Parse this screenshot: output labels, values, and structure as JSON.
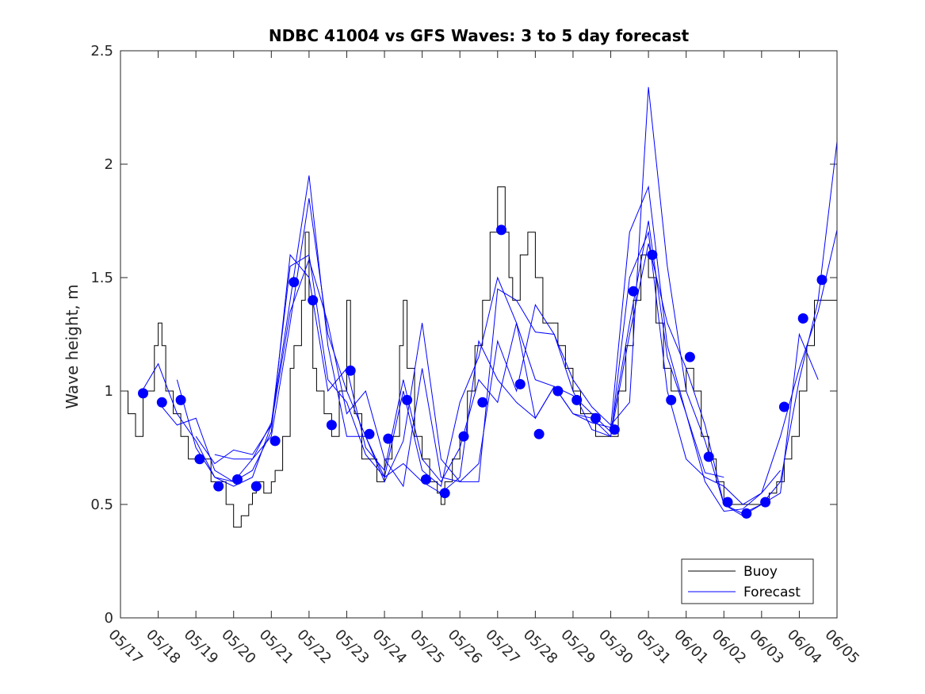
{
  "chart_data": {
    "type": "line",
    "title": "NDBC 41004 vs GFS Waves: 3 to 5 day forecast",
    "xlabel": "",
    "ylabel": "Wave height, m",
    "xlim": [
      "05/17",
      "06/05"
    ],
    "ylim": [
      0,
      2.5
    ],
    "x_ticks": [
      "05/17",
      "05/18",
      "05/19",
      "05/20",
      "05/21",
      "05/22",
      "05/23",
      "05/24",
      "05/25",
      "05/26",
      "05/27",
      "05/28",
      "05/29",
      "05/30",
      "05/31",
      "06/01",
      "06/02",
      "06/03",
      "06/04",
      "06/05"
    ],
    "y_ticks": [
      "0",
      "0.5",
      "1",
      "1.5",
      "2",
      "2.5"
    ],
    "grid": false,
    "legend_position": "bottom-right",
    "colors": {
      "buoy": "#000000",
      "forecast": "#0000ff",
      "axis": "#262626"
    },
    "legend": [
      "Buoy",
      "Forecast"
    ],
    "series": [
      {
        "name": "Buoy",
        "kind": "line",
        "x_day": [
          0,
          0.1,
          0.2,
          0.3,
          0.4,
          0.6,
          0.8,
          0.9,
          1.0,
          1.1,
          1.2,
          1.4,
          1.6,
          1.8,
          2.0,
          2.2,
          2.4,
          2.6,
          2.8,
          2.9,
          3.0,
          3.2,
          3.4,
          3.5,
          3.6,
          3.8,
          4.0,
          4.1,
          4.3,
          4.5,
          4.6,
          4.7,
          4.8,
          4.9,
          5.0,
          5.1,
          5.2,
          5.4,
          5.6,
          5.8,
          6.0,
          6.1,
          6.2,
          6.4,
          6.6,
          6.8,
          7.0,
          7.2,
          7.4,
          7.5,
          7.6,
          7.8,
          8.0,
          8.2,
          8.4,
          8.5,
          8.6,
          8.8,
          9.0,
          9.2,
          9.4,
          9.6,
          9.8,
          10.0,
          10.1,
          10.2,
          10.3,
          10.4,
          10.6,
          10.8,
          11.0,
          11.2,
          11.4,
          11.6,
          11.8,
          12.0,
          12.2,
          12.4,
          12.6,
          12.8,
          13.0,
          13.2,
          13.4,
          13.6,
          13.8,
          14.0,
          14.2,
          14.4,
          14.6,
          14.8,
          15.0,
          15.2,
          15.4,
          15.6,
          15.8,
          16.0,
          16.2,
          16.4,
          16.6,
          16.8,
          17.0,
          17.2,
          17.4,
          17.6,
          17.8,
          18.0,
          18.2,
          18.4,
          18.6,
          18.8,
          19.0
        ],
        "values": [
          1.0,
          1.0,
          0.9,
          0.9,
          0.8,
          1.0,
          1.0,
          1.2,
          1.3,
          1.2,
          1.0,
          0.9,
          0.8,
          0.7,
          0.7,
          0.7,
          0.6,
          0.6,
          0.5,
          0.5,
          0.4,
          0.45,
          0.5,
          0.55,
          0.6,
          0.55,
          0.6,
          0.65,
          0.8,
          1.1,
          1.2,
          1.2,
          1.4,
          1.7,
          1.4,
          1.1,
          1.0,
          0.9,
          0.8,
          1.0,
          1.4,
          1.1,
          0.9,
          0.7,
          0.7,
          0.6,
          0.7,
          0.8,
          1.2,
          1.4,
          1.1,
          0.8,
          0.7,
          0.6,
          0.55,
          0.5,
          0.6,
          0.7,
          0.8,
          1.0,
          1.2,
          1.4,
          1.7,
          1.9,
          1.9,
          1.7,
          1.5,
          1.4,
          1.6,
          1.7,
          1.5,
          1.3,
          1.3,
          1.2,
          1.1,
          1.0,
          0.9,
          0.9,
          0.8,
          0.8,
          0.8,
          1.0,
          1.2,
          1.4,
          1.6,
          1.5,
          1.3,
          1.1,
          1.0,
          1.0,
          1.1,
          1.0,
          0.8,
          0.7,
          0.6,
          0.5,
          0.5,
          0.5,
          0.5,
          0.5,
          0.5,
          0.55,
          0.6,
          0.7,
          0.8,
          1.0,
          1.2,
          1.4,
          1.4,
          1.4,
          1.4
        ]
      },
      {
        "name": "Forecast",
        "kind": "markers",
        "x_day": [
          0.6,
          1.1,
          1.6,
          2.1,
          2.6,
          3.1,
          3.6,
          4.1,
          4.6,
          5.1,
          5.6,
          6.1,
          6.6,
          7.1,
          7.6,
          8.1,
          8.6,
          9.1,
          9.6,
          10.1,
          10.6,
          11.1,
          11.6,
          12.1,
          12.6,
          13.1,
          13.6,
          14.1,
          14.6,
          15.1,
          15.6,
          16.1,
          16.6,
          17.1,
          17.6,
          18.1,
          18.6
        ],
        "values": [
          0.99,
          0.95,
          0.96,
          0.7,
          0.58,
          0.61,
          0.58,
          0.78,
          1.48,
          1.4,
          0.85,
          1.09,
          0.81,
          0.79,
          0.96,
          0.61,
          0.55,
          0.8,
          0.95,
          1.71,
          1.03,
          0.81,
          1.0,
          0.96,
          0.88,
          0.83,
          1.44,
          1.6,
          0.96,
          1.15,
          0.71,
          0.51,
          0.46,
          0.51,
          0.93,
          1.32,
          1.49
        ]
      },
      {
        "name": "",
        "kind": "line",
        "x_day": [
          0.5,
          1.0,
          1.5,
          2.0,
          2.5,
          3.0,
          3.5,
          4.0,
          4.5,
          5.0,
          5.5,
          6.0,
          6.5,
          7.0,
          7.5,
          8.0,
          8.5,
          9.0,
          9.5,
          10.0,
          10.5,
          11.0,
          11.5,
          12.0,
          12.5,
          13.0,
          13.5,
          14.0,
          14.5,
          15.0,
          15.5,
          16.0,
          16.5,
          17.0,
          17.5,
          18.0,
          18.5,
          19.0
        ],
        "values": [
          0.98,
          1.12,
          0.9,
          0.78,
          0.62,
          0.58,
          0.62,
          0.85,
          1.55,
          1.6,
          1.05,
          0.95,
          0.72,
          0.62,
          1.0,
          0.65,
          0.58,
          0.95,
          1.15,
          1.5,
          1.3,
          1.05,
          1.02,
          0.9,
          0.86,
          0.84,
          1.7,
          1.9,
          1.2,
          0.9,
          0.6,
          0.47,
          0.48,
          0.55,
          0.8,
          1.1,
          1.35,
          1.71
        ]
      },
      {
        "name": "",
        "kind": "line",
        "x_day": [
          1.0,
          1.5,
          2.0,
          2.5,
          3.0,
          3.5,
          4.0,
          4.5,
          5.0,
          5.5,
          6.0,
          6.5,
          7.0,
          7.5,
          8.0,
          8.5,
          9.0,
          9.5,
          10.0,
          10.5,
          11.0,
          11.5,
          12.0,
          12.5,
          13.0,
          13.5,
          14.0,
          14.5,
          15.0,
          15.5,
          16.0,
          16.5,
          17.0,
          17.5,
          18.0,
          18.5,
          19.0
        ],
        "values": [
          0.95,
          0.85,
          0.88,
          0.65,
          0.6,
          0.7,
          0.8,
          1.3,
          1.85,
          1.25,
          1.0,
          0.8,
          0.6,
          0.78,
          1.3,
          0.7,
          0.6,
          0.68,
          1.22,
          1.0,
          1.38,
          1.25,
          1.05,
          0.93,
          0.85,
          0.95,
          2.34,
          1.55,
          1.0,
          0.78,
          0.5,
          0.46,
          0.5,
          0.6,
          1.05,
          1.4,
          2.1
        ]
      },
      {
        "name": "",
        "kind": "line",
        "x_day": [
          1.5,
          2.0,
          2.5,
          3.0,
          3.5,
          4.0,
          4.5,
          5.0,
          5.5,
          6.0,
          6.5,
          7.0,
          7.5,
          8.0,
          8.5,
          9.0,
          9.5,
          10.0,
          10.5,
          11.0,
          11.5,
          12.0,
          12.5,
          13.0,
          13.5,
          14.0,
          14.5,
          15.0,
          15.5,
          16.0,
          16.5,
          17.0,
          17.5
        ],
        "values": [
          1.05,
          0.75,
          0.62,
          0.6,
          0.65,
          0.82,
          1.6,
          1.5,
          1.0,
          1.1,
          0.75,
          0.65,
          1.05,
          0.7,
          0.6,
          0.75,
          1.05,
          0.95,
          1.3,
          0.88,
          1.02,
          0.9,
          0.88,
          0.8,
          1.5,
          1.7,
          1.0,
          0.7,
          0.62,
          0.58,
          0.5,
          0.55,
          0.65
        ]
      },
      {
        "name": "",
        "kind": "line",
        "x_day": [
          2.0,
          2.5,
          3.0,
          3.5,
          4.0,
          4.5,
          5.0,
          5.5,
          6.0,
          6.5,
          7.0,
          7.5,
          8.0,
          8.5,
          9.0,
          9.5,
          10.0,
          10.5,
          11.0,
          11.5,
          12.0,
          12.5,
          13.0,
          13.5,
          14.0,
          14.5,
          15.0,
          15.5,
          16.0,
          16.5,
          17.0,
          17.5,
          18.0,
          18.5
        ],
        "values": [
          0.8,
          0.68,
          0.74,
          0.72,
          0.85,
          1.35,
          1.58,
          1.3,
          0.9,
          1.0,
          0.7,
          0.58,
          1.1,
          0.62,
          0.6,
          0.6,
          1.45,
          1.4,
          1.26,
          1.25,
          1.0,
          0.83,
          0.8,
          1.25,
          1.65,
          1.3,
          1.1,
          0.85,
          0.5,
          0.45,
          0.5,
          0.55,
          1.25,
          1.05
        ]
      },
      {
        "name": "",
        "kind": "line",
        "x_day": [
          2.5,
          3.0,
          3.5,
          4.0,
          4.5,
          5.0,
          5.5,
          6.0,
          6.5,
          7.0,
          7.5,
          8.0,
          8.5,
          9.0,
          9.5,
          10.0,
          10.5,
          11.0,
          11.5,
          12.0,
          12.5,
          13.0,
          13.5,
          14.0,
          14.5,
          15.0,
          15.5,
          16.0
        ],
        "values": [
          0.72,
          0.7,
          0.7,
          0.86,
          1.4,
          1.95,
          1.2,
          0.8,
          0.8,
          0.62,
          0.68,
          0.6,
          0.55,
          0.62,
          1.22,
          1.05,
          0.95,
          0.88,
          1.02,
          0.98,
          0.9,
          0.82,
          1.3,
          1.75,
          1.15,
          0.9,
          0.64,
          0.62
        ]
      }
    ]
  }
}
